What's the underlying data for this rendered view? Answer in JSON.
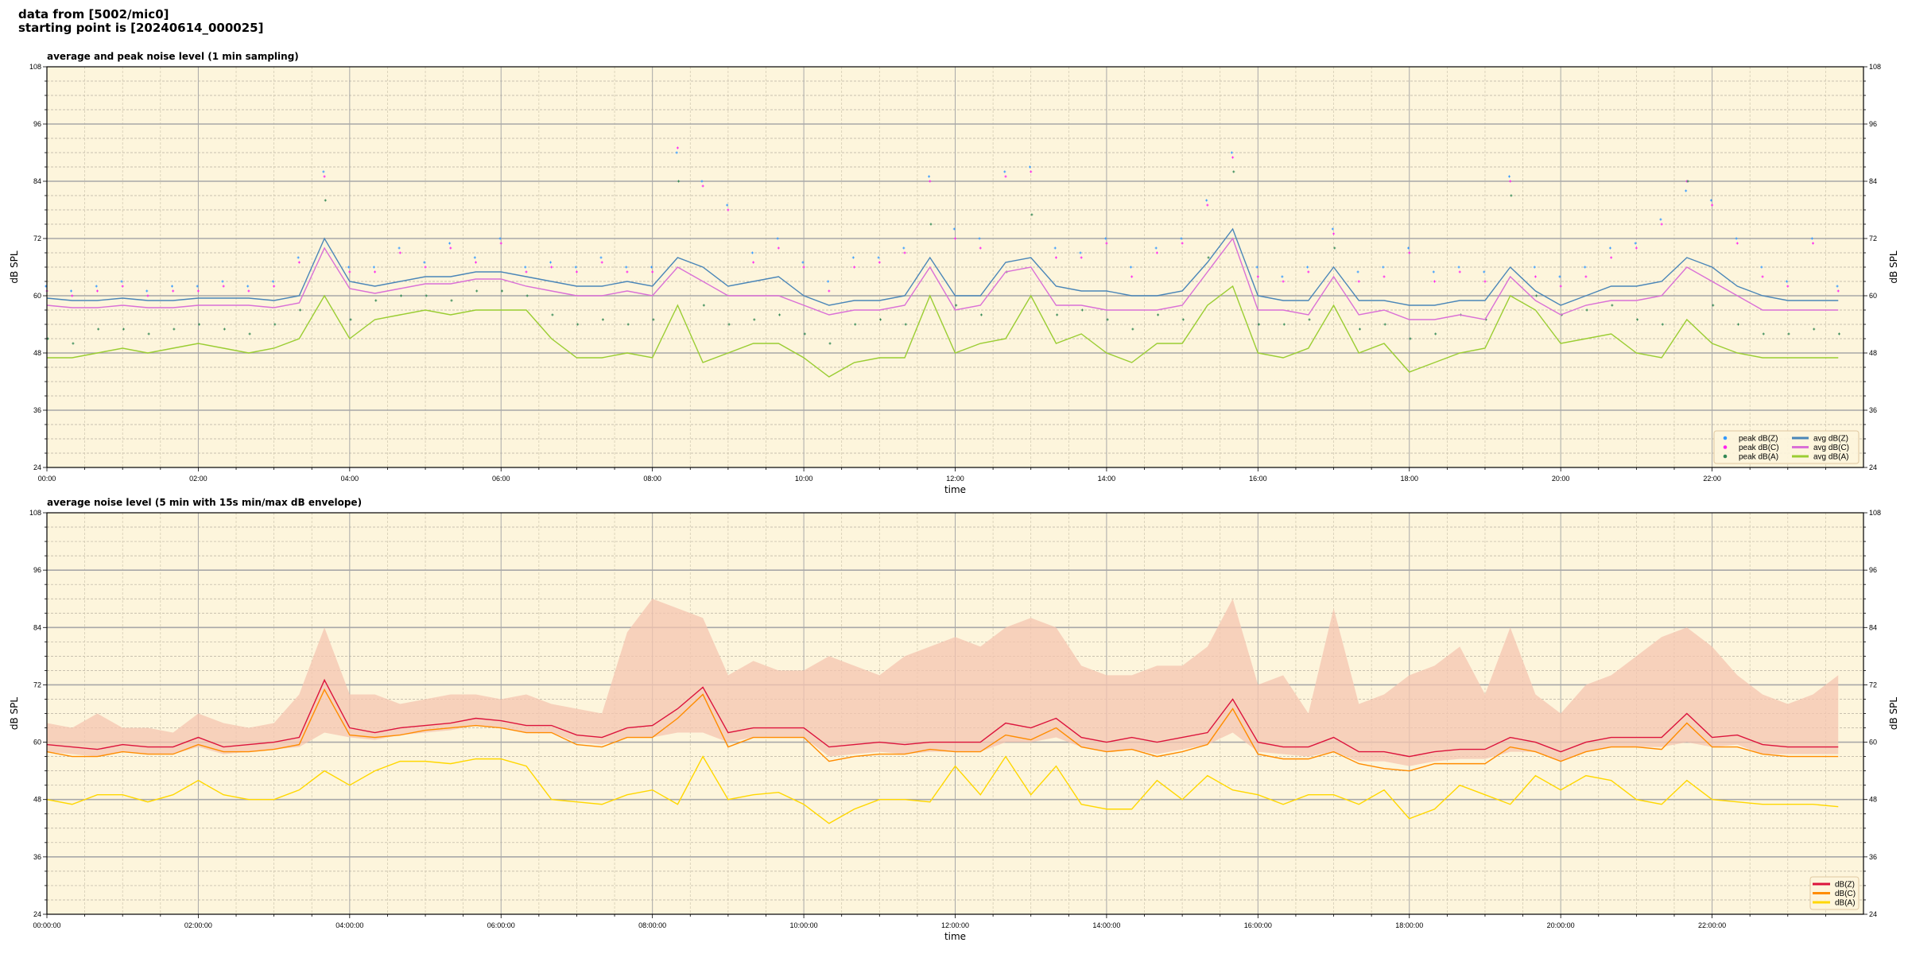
{
  "header": {
    "line1": "data from [5002/mic0]",
    "line2": "starting point is [20240614_000025]"
  },
  "colors": {
    "plot_background": "#fdf5dc",
    "peak_z": "#3399ff",
    "peak_c": "#ff22ee",
    "peak_a": "#338855",
    "avg_z": "#4a86b8",
    "avg_c": "#da70d6",
    "avg_a": "#9acd32",
    "z": "#dc143c",
    "c": "#ff8c00",
    "a": "#ffd700",
    "envelope": "#f4c4b0"
  },
  "chart_data": [
    {
      "type": "line",
      "title": "average and peak noise level (1 min sampling)",
      "xlabel": "time",
      "ylabel": "dB SPL",
      "ylim": [
        24,
        108
      ],
      "y_ticks": [
        "24",
        "36",
        "48",
        "60",
        "72",
        "84",
        "96",
        "108"
      ],
      "x_ticks": [
        "00:00",
        "02:00",
        "04:00",
        "06:00",
        "08:00",
        "10:00",
        "12:00",
        "14:00",
        "16:00",
        "18:00",
        "20:00",
        "22:00"
      ],
      "xlim": [
        "00:00",
        "24:00"
      ],
      "grid": true,
      "legend_position": "lower-right",
      "x": [
        "00:00",
        "00:20",
        "00:40",
        "01:00",
        "01:20",
        "01:40",
        "02:00",
        "02:20",
        "02:40",
        "03:00",
        "03:20",
        "03:40",
        "04:00",
        "04:20",
        "04:40",
        "05:00",
        "05:20",
        "05:40",
        "06:00",
        "06:20",
        "06:40",
        "07:00",
        "07:20",
        "07:40",
        "08:00",
        "08:20",
        "08:40",
        "09:00",
        "09:20",
        "09:40",
        "10:00",
        "10:20",
        "10:40",
        "11:00",
        "11:20",
        "11:40",
        "12:00",
        "12:20",
        "12:40",
        "13:00",
        "13:20",
        "13:40",
        "14:00",
        "14:20",
        "14:40",
        "15:00",
        "15:20",
        "15:40",
        "16:00",
        "16:20",
        "16:40",
        "17:00",
        "17:20",
        "17:40",
        "18:00",
        "18:20",
        "18:40",
        "19:00",
        "19:20",
        "19:40",
        "20:00",
        "20:20",
        "20:40",
        "21:00",
        "21:20",
        "21:40",
        "22:00",
        "22:20",
        "22:40",
        "23:00",
        "23:20",
        "23:40"
      ],
      "series": [
        {
          "name": "peak dB(Z)",
          "kind": "scatter",
          "color_key": "peak_z",
          "values": [
            62,
            61,
            62,
            63,
            61,
            62,
            62,
            63,
            62,
            63,
            68,
            86,
            66,
            66,
            70,
            67,
            71,
            68,
            72,
            66,
            67,
            66,
            68,
            66,
            66,
            90,
            84,
            79,
            69,
            72,
            67,
            63,
            68,
            68,
            70,
            85,
            74,
            72,
            86,
            87,
            70,
            69,
            72,
            66,
            70,
            72,
            80,
            90,
            66,
            64,
            66,
            74,
            65,
            66,
            70,
            65,
            66,
            65,
            85,
            66,
            64,
            66,
            70,
            71,
            76,
            82,
            80,
            72,
            66,
            63,
            72,
            62
          ]
        },
        {
          "name": "peak dB(C)",
          "kind": "scatter",
          "color_key": "peak_c",
          "values": [
            61,
            60,
            61,
            62,
            60,
            61,
            61,
            62,
            61,
            62,
            67,
            85,
            65,
            65,
            69,
            66,
            70,
            67,
            71,
            65,
            66,
            65,
            67,
            65,
            65,
            91,
            83,
            78,
            67,
            70,
            66,
            61,
            66,
            67,
            69,
            84,
            72,
            70,
            85,
            86,
            68,
            68,
            71,
            64,
            69,
            71,
            79,
            89,
            64,
            63,
            65,
            73,
            63,
            64,
            69,
            63,
            65,
            63,
            84,
            64,
            62,
            64,
            68,
            70,
            75,
            84,
            79,
            71,
            64,
            62,
            71,
            61
          ]
        },
        {
          "name": "peak dB(A)",
          "kind": "scatter",
          "color_key": "peak_a",
          "values": [
            51,
            50,
            53,
            53,
            52,
            53,
            54,
            53,
            52,
            54,
            57,
            80,
            55,
            59,
            60,
            60,
            59,
            61,
            61,
            60,
            56,
            54,
            55,
            54,
            55,
            84,
            58,
            54,
            55,
            56,
            52,
            50,
            54,
            55,
            54,
            75,
            58,
            56,
            65,
            77,
            56,
            57,
            55,
            53,
            56,
            55,
            68,
            86,
            54,
            54,
            55,
            70,
            53,
            54,
            51,
            52,
            56,
            55,
            81,
            60,
            56,
            57,
            58,
            55,
            54,
            84,
            58,
            54,
            52,
            52,
            53,
            52
          ]
        },
        {
          "name": "avg dB(Z)",
          "kind": "line",
          "color_key": "avg_z",
          "values": [
            59.5,
            59,
            59,
            59.5,
            59,
            59,
            59.5,
            59.5,
            59.5,
            59,
            60,
            72,
            63,
            62,
            63,
            64,
            64,
            65,
            65,
            64,
            63,
            62,
            62,
            63,
            62,
            68,
            66,
            62,
            63,
            64,
            60,
            58,
            59,
            59,
            60,
            68,
            60,
            60,
            67,
            68,
            62,
            61,
            61,
            60,
            60,
            61,
            67,
            74,
            60,
            59,
            59,
            66,
            59,
            59,
            58,
            58,
            59,
            59,
            66,
            61,
            58,
            60,
            62,
            62,
            63,
            68,
            66,
            62,
            60,
            59,
            59,
            59
          ]
        },
        {
          "name": "avg dB(C)",
          "kind": "line",
          "color_key": "avg_c",
          "values": [
            58,
            57.5,
            57.5,
            58,
            57.5,
            57.5,
            58,
            58,
            58,
            57.5,
            58.5,
            70,
            61.5,
            60.5,
            61.5,
            62.5,
            62.5,
            63.5,
            63.5,
            62,
            61,
            60,
            60,
            61,
            60,
            66,
            63,
            60,
            60,
            60,
            58,
            56,
            57,
            57,
            58,
            66,
            57,
            58,
            65,
            66,
            58,
            58,
            57,
            57,
            57,
            58,
            65,
            72,
            57,
            57,
            56,
            64,
            56,
            57,
            55,
            55,
            56,
            55,
            64,
            59,
            56,
            58,
            59,
            59,
            60,
            66,
            63,
            60,
            57,
            57,
            57,
            57
          ]
        },
        {
          "name": "avg dB(A)",
          "kind": "line",
          "color_key": "avg_a",
          "values": [
            47,
            47,
            48,
            49,
            48,
            49,
            50,
            49,
            48,
            49,
            51,
            60,
            51,
            55,
            56,
            57,
            56,
            57,
            57,
            57,
            51,
            47,
            47,
            48,
            47,
            58,
            46,
            48,
            50,
            50,
            47,
            43,
            46,
            47,
            47,
            60,
            48,
            50,
            51,
            60,
            50,
            52,
            48,
            46,
            50,
            50,
            58,
            62,
            48,
            47,
            49,
            58,
            48,
            50,
            44,
            46,
            48,
            49,
            60,
            57,
            50,
            51,
            52,
            48,
            47,
            55,
            50,
            48,
            47,
            47,
            47,
            47
          ]
        }
      ]
    },
    {
      "type": "line",
      "title": "average noise level (5 min with 15s min/max dB envelope)",
      "xlabel": "time",
      "ylabel": "dB SPL",
      "ylim": [
        24,
        108
      ],
      "y_ticks": [
        "24",
        "36",
        "48",
        "60",
        "72",
        "84",
        "96",
        "108"
      ],
      "x_ticks": [
        "00:00:00",
        "02:00:00",
        "04:00:00",
        "06:00:00",
        "08:00:00",
        "10:00:00",
        "12:00:00",
        "14:00:00",
        "16:00:00",
        "18:00:00",
        "20:00:00",
        "22:00:00"
      ],
      "xlim": [
        "00:00",
        "24:00"
      ],
      "grid": true,
      "legend_position": "lower-right",
      "x": [
        "00:00",
        "00:20",
        "00:40",
        "01:00",
        "01:20",
        "01:40",
        "02:00",
        "02:20",
        "02:40",
        "03:00",
        "03:20",
        "03:40",
        "04:00",
        "04:20",
        "04:40",
        "05:00",
        "05:20",
        "05:40",
        "06:00",
        "06:20",
        "06:40",
        "07:00",
        "07:20",
        "07:40",
        "08:00",
        "08:20",
        "08:40",
        "09:00",
        "09:20",
        "09:40",
        "10:00",
        "10:20",
        "10:40",
        "11:00",
        "11:20",
        "11:40",
        "12:00",
        "12:20",
        "12:40",
        "13:00",
        "13:20",
        "13:40",
        "14:00",
        "14:20",
        "14:40",
        "15:00",
        "15:20",
        "15:40",
        "16:00",
        "16:20",
        "16:40",
        "17:00",
        "17:20",
        "17:40",
        "18:00",
        "18:20",
        "18:40",
        "19:00",
        "19:20",
        "19:40",
        "20:00",
        "20:20",
        "20:40",
        "21:00",
        "21:20",
        "21:40",
        "22:00",
        "22:20",
        "22:40",
        "23:00",
        "23:20",
        "23:40"
      ],
      "envelope": {
        "color_key": "envelope",
        "max": [
          64,
          63,
          66,
          63,
          63,
          62,
          66,
          64,
          63,
          64,
          70,
          84,
          70,
          70,
          68,
          69,
          70,
          70,
          69,
          70,
          68,
          67,
          66,
          83,
          90,
          88,
          86,
          74,
          77,
          75,
          75,
          78,
          76,
          74,
          78,
          80,
          82,
          80,
          84,
          86,
          84,
          76,
          74,
          74,
          76,
          76,
          80,
          90,
          72,
          74,
          66,
          88,
          68,
          70,
          74,
          76,
          80,
          70,
          84,
          70,
          66,
          72,
          74,
          78,
          82,
          84,
          80,
          74,
          70,
          68,
          70,
          74
        ],
        "min": [
          58,
          57.5,
          57,
          58,
          57.5,
          57.5,
          59,
          57.5,
          58,
          58.5,
          59,
          62,
          61,
          60.5,
          61.5,
          62,
          62.5,
          63.5,
          63,
          62,
          62,
          60,
          59.5,
          61,
          61,
          62,
          62,
          60,
          61,
          61,
          61,
          57,
          57.5,
          58,
          57.5,
          58,
          58,
          58,
          60,
          60,
          61,
          59,
          58,
          58.5,
          57.5,
          58.5,
          59.5,
          62,
          58,
          57.5,
          57,
          58,
          56,
          56,
          55,
          56,
          56.5,
          56.5,
          58,
          58,
          56,
          58,
          59,
          59,
          59,
          60,
          59,
          59.5,
          57.5,
          57.5,
          57.5,
          57.5
        ]
      },
      "series": [
        {
          "name": "dB(Z)",
          "kind": "line",
          "color_key": "z",
          "values": [
            59.5,
            59,
            58.5,
            59.5,
            59,
            59,
            61,
            59,
            59.5,
            60,
            61,
            73,
            63,
            62,
            63,
            63.5,
            64,
            65,
            64.5,
            63.5,
            63.5,
            61.5,
            61,
            63,
            63.5,
            67,
            71.5,
            62,
            63,
            63,
            63,
            59,
            59.5,
            60,
            59.5,
            60,
            60,
            60,
            64,
            63,
            65,
            61,
            60,
            61,
            60,
            61,
            62,
            69,
            60,
            59,
            59,
            61,
            58,
            58,
            57,
            58,
            58.5,
            58.5,
            61,
            60,
            58,
            60,
            61,
            61,
            61,
            66,
            61,
            61.5,
            59.5,
            59,
            59,
            59
          ]
        },
        {
          "name": "dB(C)",
          "kind": "line",
          "color_key": "c",
          "values": [
            58,
            57,
            57,
            58,
            57.5,
            57.5,
            59.5,
            58,
            58,
            58.5,
            59.5,
            71,
            61.5,
            61,
            61.5,
            62.5,
            63,
            63.5,
            63,
            62,
            62,
            59.5,
            59,
            61,
            61,
            65,
            70,
            59,
            61,
            61,
            61,
            56,
            57,
            57.5,
            57.5,
            58.5,
            58,
            58,
            61.5,
            60.5,
            63,
            59,
            58,
            58.5,
            57,
            58,
            59.5,
            67,
            57.5,
            56.5,
            56.5,
            58,
            55.5,
            54.5,
            54,
            55.5,
            55.5,
            55.5,
            59,
            58,
            56,
            58,
            59,
            59,
            58.5,
            64,
            59,
            59,
            57.5,
            57,
            57,
            57
          ]
        },
        {
          "name": "dB(A)",
          "kind": "line",
          "color_key": "a",
          "values": [
            48,
            47,
            49,
            49,
            47.5,
            49,
            52,
            49,
            48,
            48,
            50,
            54,
            51,
            54,
            56,
            56,
            55.5,
            56.5,
            56.5,
            55,
            48,
            47.5,
            47,
            49,
            50,
            47,
            57,
            48,
            49,
            49.5,
            47,
            43,
            46,
            48,
            48,
            47.5,
            55,
            49,
            57,
            49,
            55,
            47,
            46,
            46,
            52,
            48,
            53,
            50,
            49,
            47,
            49,
            49,
            47,
            50,
            44,
            46,
            51,
            49,
            47,
            53,
            50,
            53,
            52,
            48,
            47,
            52,
            48,
            47.5,
            47,
            47,
            47,
            46.5
          ]
        }
      ]
    }
  ]
}
